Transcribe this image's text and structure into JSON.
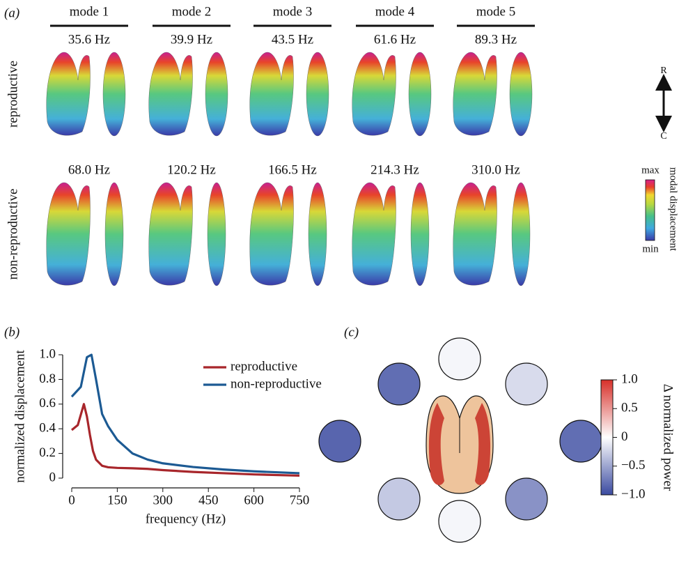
{
  "panel_a": {
    "label": "(a)",
    "modes": [
      "mode 1",
      "mode 2",
      "mode 3",
      "mode 4",
      "mode 5"
    ],
    "rows": [
      {
        "name": "reproductive",
        "frequencies": [
          "35.6 Hz",
          "39.9 Hz",
          "43.5 Hz",
          "61.6 Hz",
          "89.3 Hz"
        ]
      },
      {
        "name": "non-reproductive",
        "frequencies": [
          "68.0 Hz",
          "120.2 Hz",
          "166.5 Hz",
          "214.3 Hz",
          "310.0 Hz"
        ]
      }
    ],
    "axis_top": "R",
    "axis_bottom": "C",
    "scale_max": "max",
    "scale_min": "min",
    "scale_label": "modal displacement"
  },
  "chart_data": [
    {
      "type": "line",
      "panel": "(b)",
      "x_label": "frequency (Hz)",
      "y_label": "normalized displacement",
      "xlim": [
        0,
        750
      ],
      "xticks": [
        0,
        150,
        300,
        450,
        600,
        750
      ],
      "ylim": [
        0,
        1
      ],
      "yticks": [
        0,
        0.2,
        0.4,
        0.6,
        0.8,
        {
          "value": 1,
          "label": "1.0"
        }
      ],
      "series": [
        {
          "name": "reproductive",
          "color": "#a8262b",
          "x": [
            0,
            20,
            40,
            50,
            60,
            70,
            80,
            100,
            120,
            150,
            200,
            250,
            300,
            400,
            500,
            600,
            750
          ],
          "values": [
            0.39,
            0.43,
            0.6,
            0.5,
            0.35,
            0.22,
            0.15,
            0.1,
            0.088,
            0.083,
            0.08,
            0.075,
            0.065,
            0.05,
            0.04,
            0.03,
            0.02
          ]
        },
        {
          "name": "non-reproductive",
          "color": "#1c5a93",
          "x": [
            0,
            30,
            50,
            65,
            80,
            100,
            120,
            150,
            200,
            250,
            300,
            400,
            500,
            600,
            750
          ],
          "values": [
            0.66,
            0.74,
            0.98,
            1.0,
            0.8,
            0.52,
            0.42,
            0.31,
            0.2,
            0.15,
            0.12,
            0.09,
            0.07,
            0.055,
            0.04
          ]
        }
      ]
    },
    {
      "type": "circles",
      "panel": "(c)",
      "colorbar_label": "Δ normalized power",
      "values": [
        -0.05,
        -0.2,
        -0.8,
        -0.6,
        -0.05,
        -0.3,
        -0.85,
        -0.8
      ],
      "clim": [
        -1,
        1
      ],
      "colormap": [
        "#3a4aa0",
        "#ffffff",
        "#d7302a"
      ],
      "cticks": [
        {
          "value": 1,
          "label": "1.0"
        },
        0.5,
        0,
        {
          "value": -0.5,
          "label": "−0.5"
        },
        {
          "value": -1,
          "label": "−1.0"
        }
      ]
    }
  ]
}
